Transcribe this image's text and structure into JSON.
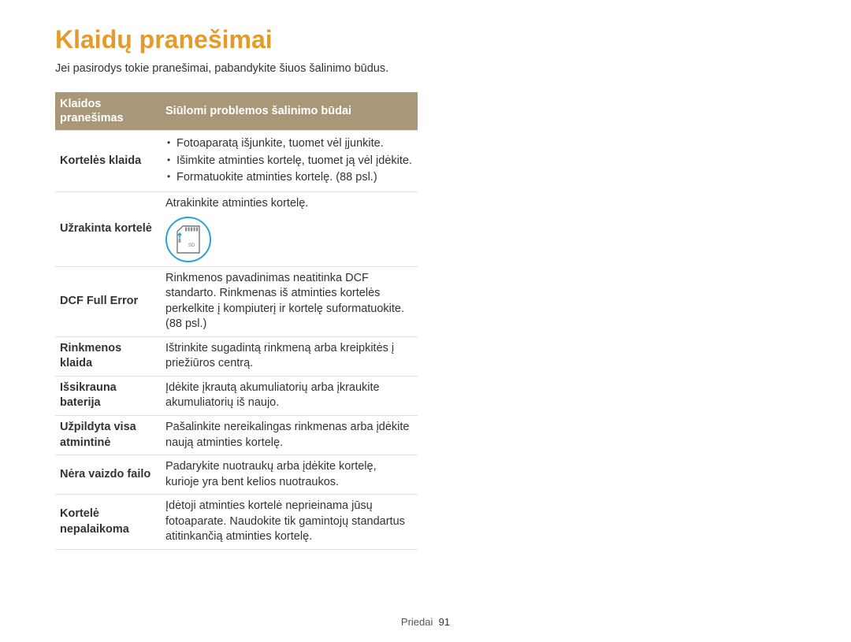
{
  "title": "Klaidų pranešimai",
  "intro": "Jei pasirodys tokie pranešimai, pabandykite šiuos šalinimo būdus.",
  "table": {
    "header": {
      "col0_l1": "Klaidos",
      "col0_l2": "pranešimas",
      "col1": "Siūlomi problemos šalinimo būdai"
    },
    "colors": {
      "header_bg": "#a99878",
      "header_fg": "#ffffff",
      "title_color": "#e59a2c",
      "icon_ring": "#2aa2d8",
      "border": "#e0e0e0"
    },
    "rows": [
      {
        "label": "Kortelės klaida",
        "type": "bullets",
        "bullets": [
          "Fotoaparatą išjunkite, tuomet vėl įjunkite.",
          "Išimkite atminties kortelę, tuomet ją vėl įdėkite.",
          "Formatuokite atminties kortelę. (88 psl.)"
        ]
      },
      {
        "label": "Užrakinta kortelė",
        "type": "sd",
        "text": "Atrakinkite atminties kortelę.",
        "sd_label": "SD"
      },
      {
        "label": "DCF Full Error",
        "type": "text",
        "text": "Rinkmenos pavadinimas neatitinka DCF standarto. Rinkmenas iš atminties kortelės perkelkite į kompiuterį ir kortelę suformatuokite. (88 psl.)"
      },
      {
        "label": "Rinkmenos klaida",
        "type": "text",
        "text": "Ištrinkite sugadintą rinkmeną arba kreipkitės į priežiūros centrą."
      },
      {
        "label": "Išsikrauna baterija",
        "type": "text",
        "text": "Įdėkite įkrautą akumuliatorių arba įkraukite akumuliatorių iš naujo."
      },
      {
        "label": "Užpildyta visa atmintinė",
        "type": "text",
        "text": "Pašalinkite nereikalingas rinkmenas arba įdėkite naują atminties kortelę."
      },
      {
        "label": "Nėra vaizdo failo",
        "type": "text",
        "text": "Padarykite nuotraukų arba įdėkite kortelę, kurioje yra bent kelios nuotraukos."
      },
      {
        "label": "Kortelė nepalaikoma",
        "type": "text",
        "text": "Įdėtoji atminties kortelė neprieinama jūsų fotoaparate. Naudokite tik gamintojų standartus atitinkančią atminties kortelę."
      }
    ]
  },
  "footer": {
    "section": "Priedai",
    "page": "91"
  }
}
